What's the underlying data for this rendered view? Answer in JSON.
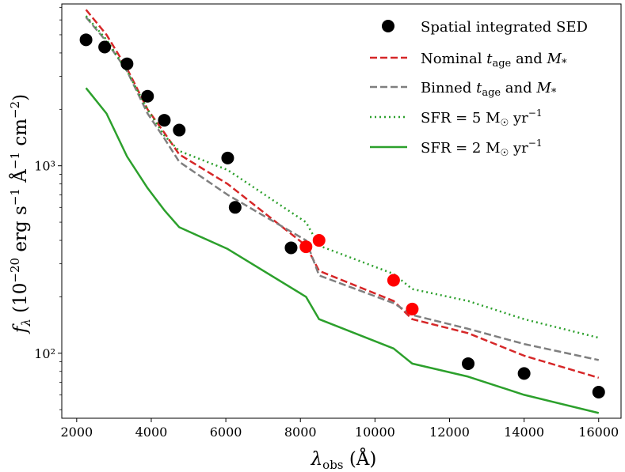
{
  "chart_data": {
    "type": "line",
    "title": "",
    "xlabel": "λobs (Å)",
    "ylabel": "fλ (10⁻²⁰ erg s⁻¹ Å⁻¹ cm⁻²)",
    "xlim": [
      1600,
      16600
    ],
    "ylim": [
      45,
      7300
    ],
    "yscale": "log",
    "x_ticks": [
      2000,
      4000,
      6000,
      8000,
      10000,
      12000,
      14000,
      16000
    ],
    "x_tick_labels": [
      "2000",
      "4000",
      "6000",
      "8000",
      "10000",
      "12000",
      "14000",
      "16000"
    ],
    "y_ticks": [
      100,
      1000
    ],
    "y_tick_labels": [
      "10²",
      "10³"
    ],
    "legend_position": "top-right",
    "series": [
      {
        "name": "Spatial integrated SED",
        "kind": "scatter",
        "color": "#000000",
        "x": [
          2250,
          2750,
          3350,
          3900,
          4350,
          4750,
          6050,
          6250,
          7750,
          12500,
          14000,
          16000
        ],
        "values": [
          4700,
          4300,
          3500,
          2350,
          1750,
          1550,
          1100,
          600,
          365,
          88,
          78,
          62
        ]
      },
      {
        "name": "Spatial integrated SED (red points)",
        "kind": "scatter",
        "color": "#ff0000",
        "in_legend": false,
        "x": [
          8150,
          8500,
          10500,
          11000
        ],
        "values": [
          370,
          400,
          245,
          172
        ]
      },
      {
        "name": "Nominal t_age and M*",
        "kind": "line",
        "style": "dashed",
        "color": "#d62728",
        "x": [
          2250,
          2800,
          3350,
          3900,
          4350,
          4750,
          6050,
          8150,
          8500,
          10500,
          11000,
          12500,
          14000,
          16000
        ],
        "values": [
          6800,
          5000,
          3300,
          2000,
          1500,
          1150,
          800,
          375,
          275,
          190,
          152,
          128,
          97,
          74
        ]
      },
      {
        "name": "Binned t_age and M*",
        "kind": "line",
        "style": "dashed",
        "color": "#7f7f7f",
        "x": [
          2250,
          2800,
          3350,
          3900,
          4350,
          4750,
          6050,
          8150,
          8500,
          10500,
          11000,
          12500,
          14000,
          16000
        ],
        "values": [
          6200,
          4600,
          3200,
          1900,
          1400,
          1050,
          700,
          400,
          260,
          185,
          160,
          135,
          112,
          92
        ]
      },
      {
        "name": "SFR = 5 M☉ yr⁻¹",
        "kind": "line",
        "style": "dotted",
        "color": "#2ca02c",
        "x": [
          2250,
          2800,
          3350,
          3900,
          4350,
          4750,
          6050,
          8150,
          8500,
          10500,
          11000,
          12500,
          14000,
          16000
        ],
        "values": [
          6300,
          4700,
          3200,
          2000,
          1450,
          1200,
          950,
          500,
          375,
          265,
          220,
          190,
          152,
          121
        ]
      },
      {
        "name": "SFR = 2 M☉ yr⁻¹",
        "kind": "line",
        "style": "solid",
        "color": "#2ca02c",
        "x": [
          2250,
          2800,
          3350,
          3900,
          4350,
          4750,
          6050,
          8150,
          8500,
          10500,
          11000,
          12500,
          14000,
          16000
        ],
        "values": [
          2600,
          1900,
          1120,
          760,
          580,
          470,
          360,
          200,
          152,
          106,
          88,
          75,
          60,
          48
        ]
      }
    ]
  }
}
